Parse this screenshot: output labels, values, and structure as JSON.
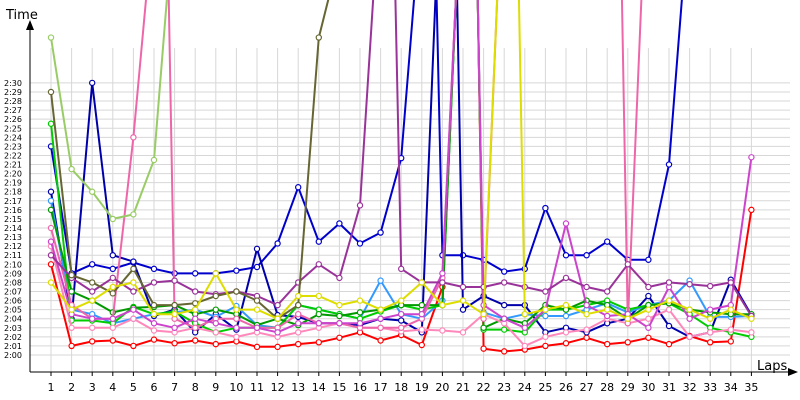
{
  "chart_data": {
    "type": "line",
    "title": "",
    "ylabel": "Time",
    "xlabel": "Laps",
    "x": [
      1,
      2,
      3,
      4,
      5,
      6,
      7,
      8,
      9,
      10,
      11,
      12,
      13,
      14,
      15,
      16,
      17,
      18,
      19,
      20,
      21,
      22,
      23,
      24,
      25,
      26,
      27,
      28,
      29,
      30,
      31,
      32,
      33,
      34,
      35
    ],
    "x_tick_labels": [
      "1",
      "2",
      "3",
      "4",
      "5",
      "6",
      "7",
      "8",
      "9",
      "10",
      "11",
      "12",
      "13",
      "14",
      "15",
      "16",
      "17",
      "18",
      "19",
      "20",
      "21",
      "22",
      "23",
      "24",
      "25",
      "26",
      "27",
      "28",
      "29",
      "30",
      "31",
      "32",
      "33",
      "34",
      "35"
    ],
    "y_unit": "seconds",
    "ylim": [
      119,
      155
    ],
    "y_ticks": [
      120,
      121,
      122,
      123,
      124,
      125,
      126,
      127,
      128,
      129,
      130,
      131,
      132,
      133,
      134,
      135,
      136,
      137,
      138,
      139,
      140,
      141,
      142,
      143,
      144,
      145,
      146,
      147,
      148,
      149,
      150
    ],
    "y_tick_labels": [
      "2:00",
      "2:01",
      "2:02",
      "2:03",
      "2:04",
      "2:05",
      "2:06",
      "2:07",
      "2:08",
      "2:09",
      "2:10",
      "2:11",
      "2:12",
      "2:13",
      "2:14",
      "2:15",
      "2:16",
      "2:17",
      "2:18",
      "2:19",
      "2:20",
      "2:21",
      "2:22",
      "2:23",
      "2:24",
      "2:25",
      "2:26",
      "2:27",
      "2:28",
      "2:29",
      "2:30"
    ],
    "grid": true,
    "legend": "none",
    "series": [
      {
        "color": "#ff0000",
        "values": [
          130.0,
          121.0,
          121.5,
          121.6,
          121.0,
          121.7,
          121.3,
          121.6,
          121.2,
          121.5,
          120.9,
          120.9,
          121.2,
          121.4,
          121.9,
          122.5,
          121.6,
          122.2,
          121.1,
          127.5,
          null,
          120.7,
          120.4,
          120.6,
          121.0,
          121.3,
          121.9,
          121.2,
          121.4,
          121.9,
          121.2,
          122.1,
          121.4,
          121.5,
          136.0
        ]
      },
      {
        "color": "#0000cc",
        "values": [
          143.0,
          129.0,
          130.0,
          129.5,
          130.2,
          129.5,
          129.0,
          129.0,
          129.0,
          129.3,
          129.7,
          132.3,
          138.5,
          132.5,
          134.5,
          132.3,
          133.5,
          141.7,
          null,
          131.0,
          131.0,
          130.5,
          129.2,
          129.5,
          136.2,
          131.0,
          131.0,
          132.5,
          130.5,
          130.5,
          141.0,
          null,
          null,
          null,
          null
        ]
      },
      {
        "color": "#0000aa",
        "values": [
          138.0,
          124.0,
          150.0,
          131.0,
          130.3,
          124.3,
          125.0,
          122.5,
          124.5,
          122.8,
          131.7,
          124.4,
          124.2,
          123.5,
          123.5,
          123.3,
          124.0,
          123.8,
          122.5,
          null,
          125.0,
          126.5,
          125.5,
          125.5,
          122.5,
          123.0,
          122.5,
          123.5,
          124.0,
          126.5,
          123.2,
          122.0,
          122.5,
          128.3,
          124.4
        ]
      },
      {
        "color": "#3399ff",
        "values": [
          137.0,
          125.0,
          124.5,
          123.5,
          124.0,
          124.5,
          124.7,
          125.0,
          124.2,
          125.4,
          123.3,
          123.0,
          125.5,
          125.0,
          124.5,
          124.0,
          128.2,
          124.5,
          124.0,
          126.0,
          null,
          124.7,
          124.0,
          124.5,
          124.3,
          124.3,
          125.0,
          125.7,
          124.7,
          125.5,
          126.0,
          128.2,
          124.2,
          124.2,
          124.3
        ]
      },
      {
        "color": "#00cc00",
        "values": [
          145.5,
          123.8,
          123.8,
          123.5,
          125.3,
          124.5,
          124.8,
          123.5,
          122.5,
          123.0,
          123.0,
          123.0,
          125.5,
          125.0,
          124.5,
          124.0,
          124.8,
          125.5,
          125.0,
          125.5,
          null,
          122.8,
          122.8,
          122.5,
          125.0,
          125.0,
          125.5,
          126.0,
          125.0,
          125.5,
          125.7,
          124.5,
          123.0,
          122.5,
          122.0
        ]
      },
      {
        "color": "#009900",
        "values": [
          136.0,
          127.0,
          126.0,
          124.7,
          125.2,
          125.3,
          125.5,
          124.5,
          125.0,
          124.5,
          123.3,
          124.0,
          123.3,
          124.5,
          124.3,
          124.7,
          125.0,
          125.5,
          125.5,
          125.5,
          null,
          123.0,
          124.0,
          123.5,
          125.5,
          125.0,
          126.0,
          125.5,
          124.0,
          125.5,
          125.7,
          125.0,
          124.7,
          124.5,
          124.5
        ]
      },
      {
        "color": "#ff88bb",
        "values": [
          132.0,
          123.0,
          123.0,
          123.0,
          124.0,
          122.7,
          122.5,
          123.0,
          122.5,
          122.0,
          122.5,
          122.0,
          122.5,
          123.0,
          123.5,
          123.0,
          123.0,
          122.6,
          122.8,
          122.7,
          122.5,
          124.5,
          123.5,
          121.0,
          122.0,
          122.5,
          122.8,
          124.0,
          123.5,
          124.0,
          125.0,
          122.0,
          122.5,
          122.8,
          122.5
        ]
      },
      {
        "color": "#ee66aa",
        "values": [
          134.0,
          125.5,
          124.0,
          124.0,
          144.0,
          null,
          124.0,
          123.0,
          124.0,
          124.0,
          123.0,
          123.0,
          124.5,
          123.5,
          123.5,
          123.0,
          123.0,
          123.0,
          124.0,
          128.5,
          null,
          124.0,
          null,
          null,
          null,
          null,
          null,
          null,
          123.5,
          null,
          null,
          null,
          null,
          null,
          null
        ]
      },
      {
        "color": "#cc44cc",
        "values": [
          132.5,
          124.5,
          124.0,
          124.0,
          125.0,
          123.5,
          123.0,
          124.0,
          123.5,
          123.0,
          123.0,
          122.5,
          123.5,
          123.5,
          123.5,
          123.5,
          124.0,
          124.5,
          124.5,
          129.0,
          null,
          125.5,
          124.0,
          123.0,
          125.0,
          134.5,
          125.5,
          124.3,
          124.5,
          123.0,
          127.5,
          124.0,
          125.0,
          125.5,
          141.8
        ]
      },
      {
        "color": "#993399",
        "values": [
          131.0,
          128.5,
          127.0,
          128.5,
          127.0,
          128.0,
          128.2,
          127.0,
          126.7,
          127.0,
          126.5,
          125.5,
          128.0,
          130.0,
          128.5,
          136.5,
          null,
          129.5,
          128.0,
          128.0,
          127.5,
          127.5,
          128.0,
          127.5,
          127.0,
          128.5,
          127.5,
          127.0,
          130.0,
          127.5,
          128.0,
          127.8,
          127.6,
          128.0,
          124.3
        ]
      },
      {
        "color": "#666633",
        "values": [
          149.0,
          128.8,
          128.0,
          126.8,
          129.5,
          125.5,
          125.5,
          125.7,
          126.5,
          127.0,
          126.0,
          124.0,
          125.5,
          155.0,
          null,
          null,
          null,
          null,
          null,
          null,
          null,
          null,
          null,
          null,
          null,
          null,
          null,
          null,
          null,
          null,
          null,
          null,
          null,
          null,
          null
        ]
      },
      {
        "color": "#dddd00",
        "values": [
          128.0,
          125.0,
          126.0,
          127.5,
          128.0,
          124.5,
          124.5,
          125.0,
          129.0,
          125.0,
          125.0,
          124.0,
          126.5,
          126.5,
          125.5,
          126.0,
          125.0,
          126.0,
          128.0,
          125.5,
          126.0,
          124.5,
          null,
          124.5,
          125.0,
          125.5,
          124.5,
          125.0,
          124.0,
          125.0,
          126.0,
          125.0,
          124.0,
          125.0,
          124.0
        ]
      },
      {
        "color": "#99cc66",
        "values": [
          155.0,
          140.5,
          138.0,
          135.0,
          135.5,
          141.5,
          null,
          null,
          null,
          null,
          null,
          null,
          null,
          null,
          null,
          null,
          null,
          null,
          null,
          null,
          null,
          null,
          null,
          null,
          null,
          null,
          null,
          null,
          null,
          null,
          null,
          null,
          null,
          null,
          null
        ]
      }
    ]
  }
}
